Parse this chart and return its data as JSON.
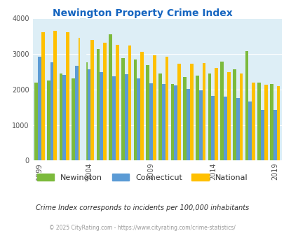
{
  "title": "Newington Property Crime Index",
  "years": [
    1999,
    2000,
    2001,
    2002,
    2004,
    2005,
    2006,
    2007,
    2008,
    2009,
    2010,
    2011,
    2012,
    2013,
    2014,
    2015,
    2016,
    2017,
    2018,
    2019
  ],
  "newington": [
    2200,
    2250,
    2450,
    2320,
    2775,
    3150,
    3550,
    2875,
    2850,
    2680,
    2450,
    2150,
    2350,
    2390,
    2450,
    2790,
    2575,
    3080,
    2200,
    2150
  ],
  "connecticut": [
    2925,
    2775,
    2410,
    2660,
    2560,
    2490,
    2370,
    2440,
    2320,
    2175,
    2160,
    2115,
    2010,
    1980,
    1820,
    1800,
    1760,
    1665,
    1420,
    1420
  ],
  "national": [
    3620,
    3660,
    3620,
    3455,
    3395,
    3310,
    3260,
    3235,
    3060,
    2960,
    2920,
    2720,
    2730,
    2740,
    2600,
    2490,
    2460,
    2185,
    2130,
    2090
  ],
  "newington_color": "#7cba3c",
  "connecticut_color": "#5b9bd5",
  "national_color": "#ffc000",
  "bg_color": "#ddeef6",
  "title_color": "#1565c0",
  "axis_bg": "#ddeef6",
  "ylim": [
    0,
    4000
  ],
  "yticks": [
    0,
    1000,
    2000,
    3000,
    4000
  ],
  "subtitle": "Crime Index corresponds to incidents per 100,000 inhabitants",
  "footnote": "© 2025 CityRating.com - https://www.cityrating.com/crime-statistics/",
  "legend_labels": [
    "Newington",
    "Connecticut",
    "National"
  ]
}
